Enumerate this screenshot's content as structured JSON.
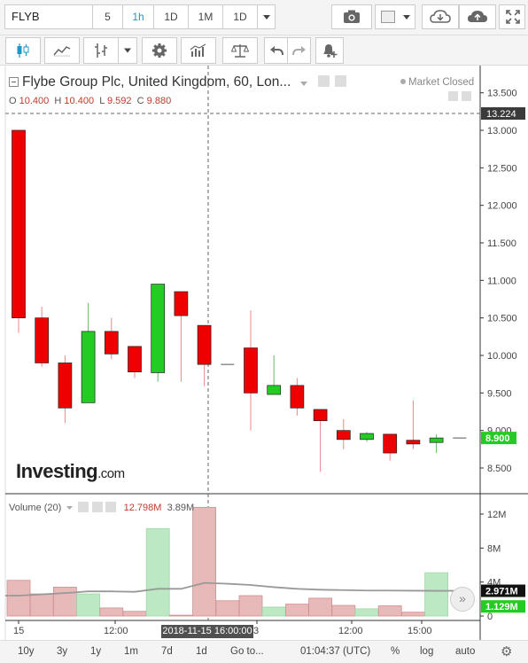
{
  "toolbar": {
    "symbol": "FLYB",
    "intervals": [
      {
        "label": "5",
        "active": false
      },
      {
        "label": "1h",
        "active": true
      },
      {
        "label": "1D",
        "active": false
      },
      {
        "label": "1M",
        "active": false
      },
      {
        "label": "1D",
        "active": false
      }
    ]
  },
  "header": {
    "title": "Flybe Group Plc, United Kingdom, 60, Lon...",
    "status": "Market Closed",
    "ohlc": {
      "o_label": "O",
      "o": "10.400",
      "h_label": "H",
      "h": "10.400",
      "l_label": "L",
      "l": "9.592",
      "c_label": "C",
      "c": "9.880"
    }
  },
  "price_axis": {
    "ticks": [
      "13.500",
      "13.000",
      "12.500",
      "12.000",
      "11.500",
      "11.000",
      "10.500",
      "10.000",
      "9.500",
      "9.000",
      "8.500"
    ],
    "crosshair_label": "13.224",
    "last_price_label": "8.900"
  },
  "volume": {
    "title": "Volume (20)",
    "value_red": "12.798M",
    "value_ma": "3.89M",
    "ticks": [
      "12M",
      "8M",
      "4M",
      "0"
    ],
    "ma_label": "2.971M",
    "last_label": "1.129M"
  },
  "x_axis": {
    "labels": [
      "15",
      "12:00",
      "3",
      "12:00",
      "15:00"
    ],
    "crosshair_label": "2018-11-15 16:00:00"
  },
  "logo": {
    "name": "Investing",
    "suffix": ".com"
  },
  "bottom_bar": {
    "ranges": [
      "10y",
      "3y",
      "1y",
      "1m",
      "7d",
      "1d"
    ],
    "goto": "Go to...",
    "clock": "01:04:37 (UTC)",
    "percent": "%",
    "log": "log",
    "auto": "auto"
  },
  "colors": {
    "up": "#22cc22",
    "down": "#ee0000",
    "vol_up": "#bde8c4",
    "vol_down": "#e8b9b9",
    "ma": "#999999"
  },
  "chart_data": {
    "type": "candlestick",
    "ylim": [
      8.3,
      13.6
    ],
    "candles": [
      {
        "o": 13.0,
        "h": 13.0,
        "l": 10.3,
        "c": 10.5,
        "v": 4.2
      },
      {
        "o": 10.5,
        "h": 10.65,
        "l": 9.85,
        "c": 9.9,
        "v": 2.6
      },
      {
        "o": 9.9,
        "h": 10.0,
        "l": 9.1,
        "c": 9.3,
        "v": 3.4
      },
      {
        "o": 9.37,
        "h": 10.7,
        "l": 9.37,
        "c": 10.32,
        "v": 2.6
      },
      {
        "o": 10.32,
        "h": 10.5,
        "l": 9.95,
        "c": 10.02,
        "v": 0.95
      },
      {
        "o": 10.12,
        "h": 10.12,
        "l": 9.7,
        "c": 9.78,
        "v": 0.55
      },
      {
        "o": 9.77,
        "h": 10.95,
        "l": 9.65,
        "c": 10.95,
        "v": 10.3
      },
      {
        "o": 10.85,
        "h": 10.85,
        "l": 9.65,
        "c": 10.53,
        "v": 0.1
      },
      {
        "o": 10.4,
        "h": 10.4,
        "l": 9.59,
        "c": 9.88,
        "v": 12.798
      },
      {
        "o": 9.88,
        "h": 9.88,
        "l": 9.88,
        "c": 9.88,
        "v": 1.8
      },
      {
        "o": 10.1,
        "h": 10.6,
        "l": 9.0,
        "c": 9.5,
        "v": 2.4
      },
      {
        "o": 9.48,
        "h": 10.0,
        "l": 9.48,
        "c": 9.6,
        "v": 1.05
      },
      {
        "o": 9.6,
        "h": 9.7,
        "l": 9.2,
        "c": 9.3,
        "v": 1.4
      },
      {
        "o": 9.28,
        "h": 9.28,
        "l": 8.45,
        "c": 9.13,
        "v": 2.1
      },
      {
        "o": 9.0,
        "h": 9.15,
        "l": 8.75,
        "c": 8.88,
        "v": 1.25
      },
      {
        "o": 8.88,
        "h": 8.98,
        "l": 8.85,
        "c": 8.96,
        "v": 0.85
      },
      {
        "o": 8.95,
        "h": 8.95,
        "l": 8.6,
        "c": 8.7,
        "v": 1.2
      },
      {
        "o": 8.87,
        "h": 9.4,
        "l": 8.75,
        "c": 8.82,
        "v": 0.45
      },
      {
        "o": 8.84,
        "h": 8.95,
        "l": 8.7,
        "c": 8.9,
        "v": 5.1
      },
      {
        "o": 8.9,
        "h": 8.9,
        "l": 8.9,
        "c": 8.9,
        "v": 0
      }
    ],
    "volume_ma": [
      2.4,
      2.55,
      2.7,
      2.9,
      2.9,
      2.85,
      3.2,
      3.2,
      3.9,
      3.8,
      3.65,
      3.4,
      3.2,
      3.1,
      3.05,
      3.0,
      3.0,
      2.98,
      2.97,
      2.97
    ],
    "volume_ylim": [
      0,
      13.5
    ]
  }
}
